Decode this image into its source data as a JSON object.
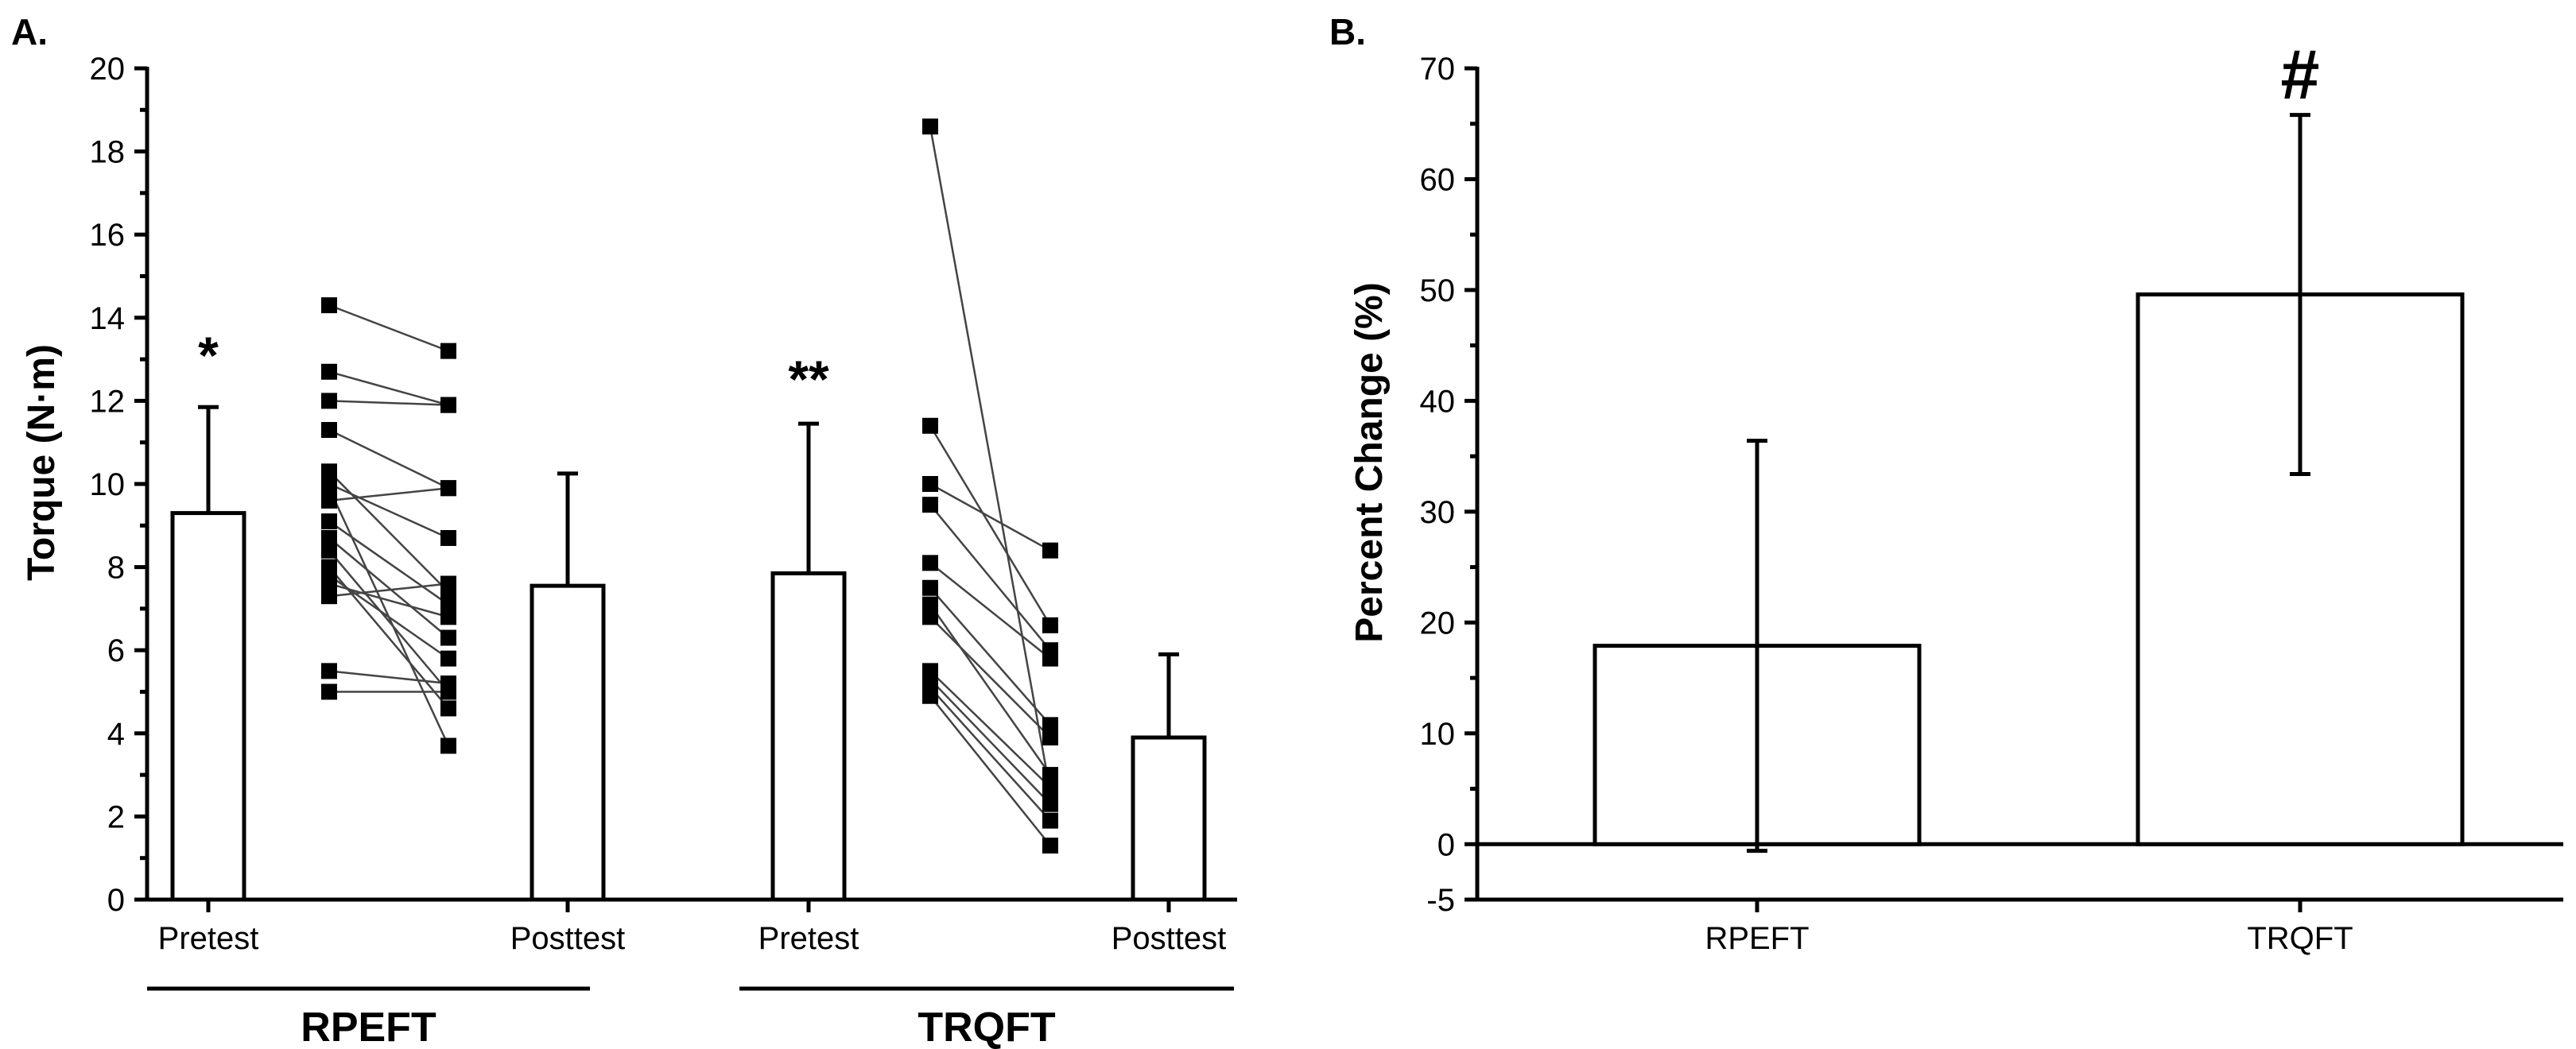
{
  "chart_data": [
    {
      "panel": "A.",
      "type": "bar",
      "ylabel": "Torque (N·m)",
      "ylim": [
        0,
        20
      ],
      "yticks": [
        "0",
        "2",
        "4",
        "6",
        "8",
        "10",
        "12",
        "14",
        "16",
        "18",
        "20"
      ],
      "categories": [
        "Pretest",
        "Posttest",
        "Pretest",
        "Posttest"
      ],
      "groups": [
        "RPEFT",
        "TRQFT"
      ],
      "bars": [
        {
          "group": "RPEFT",
          "label": "Pretest",
          "mean": 9.3,
          "sd": 2.55
        },
        {
          "group": "RPEFT",
          "label": "Posttest",
          "mean": 7.55,
          "sd": 2.7
        },
        {
          "group": "TRQFT",
          "label": "Pretest",
          "mean": 7.85,
          "sd": 3.6
        },
        {
          "group": "TRQFT",
          "label": "Posttest",
          "mean": 3.9,
          "sd": 2.0
        }
      ],
      "annotations": [
        {
          "bar": 0,
          "text": "*"
        },
        {
          "bar": 2,
          "text": "**"
        }
      ],
      "individual_data": [
        {
          "group": "RPEFT",
          "pairs": [
            [
              14.3,
              13.2
            ],
            [
              12.7,
              11.9
            ],
            [
              12.0,
              11.9
            ],
            [
              11.3,
              9.9
            ],
            [
              10.3,
              7.4
            ],
            [
              10.0,
              8.7
            ],
            [
              9.6,
              9.9
            ],
            [
              9.1,
              7.1
            ],
            [
              8.7,
              6.3
            ],
            [
              8.4,
              5.0
            ],
            [
              7.8,
              5.8
            ],
            [
              7.6,
              6.8
            ],
            [
              7.3,
              7.6
            ],
            [
              5.5,
              5.2
            ],
            [
              5.0,
              5.0
            ],
            [
              9.9,
              3.7
            ],
            [
              8.0,
              4.6
            ]
          ]
        },
        {
          "group": "TRQFT",
          "pairs": [
            [
              18.6,
              2.6
            ],
            [
              11.4,
              6.6
            ],
            [
              10.0,
              8.4
            ],
            [
              9.5,
              6.0
            ],
            [
              8.1,
              5.8
            ],
            [
              7.5,
              4.2
            ],
            [
              7.1,
              3.0
            ],
            [
              6.8,
              3.9
            ],
            [
              5.5,
              2.7
            ],
            [
              5.3,
              2.3
            ],
            [
              5.1,
              1.9
            ],
            [
              4.9,
              1.3
            ]
          ]
        }
      ]
    },
    {
      "panel": "B.",
      "type": "bar",
      "ylabel": "Percent Change (%)",
      "ylim": [
        -5,
        70
      ],
      "yticks": [
        "-5",
        "0",
        "10",
        "20",
        "30",
        "40",
        "50",
        "60",
        "70"
      ],
      "categories": [
        "RPEFT",
        "TRQFT"
      ],
      "bars": [
        {
          "label": "RPEFT",
          "mean": 17.9,
          "sd": 18.5
        },
        {
          "label": "TRQFT",
          "mean": 49.6,
          "sd": 16.2
        }
      ],
      "annotations": [
        {
          "bar": 1,
          "text": "#"
        }
      ]
    }
  ]
}
